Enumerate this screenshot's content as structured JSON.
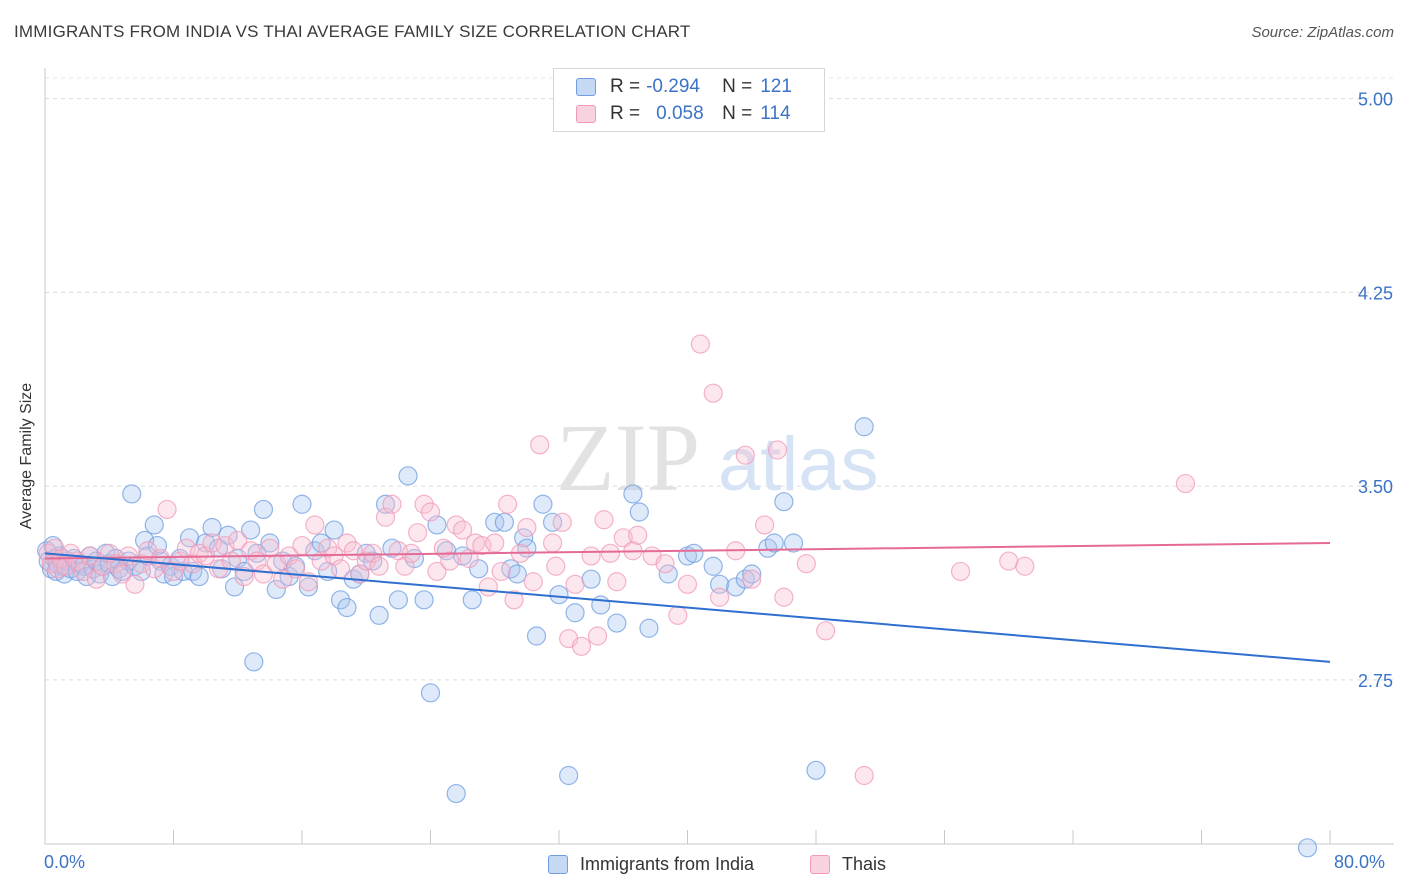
{
  "title": "IMMIGRANTS FROM INDIA VS THAI AVERAGE FAMILY SIZE CORRELATION CHART",
  "source": "Source: ZipAtlas.com",
  "watermark": {
    "zip": "ZIP",
    "atlas": "atlas"
  },
  "legend": {
    "rows": [
      {
        "r_label": "R =",
        "r_value": "-0.294",
        "n_label": "N =",
        "n_value": "121",
        "color": "#6f9ee0"
      },
      {
        "r_label": "R =",
        "r_value": "0.058",
        "n_label": "N =",
        "n_value": "114",
        "color": "#f09ab8"
      }
    ]
  },
  "bottom_legend": [
    {
      "label": "Immigrants from India",
      "color": "#6f9ee0"
    },
    {
      "label": "Thais",
      "color": "#f09ab8"
    }
  ],
  "chart_data": {
    "type": "scatter",
    "title": "IMMIGRANTS FROM INDIA VS THAI AVERAGE FAMILY SIZE CORRELATION CHART",
    "xlabel": "",
    "ylabel": "Average Family Size",
    "xlim": [
      0,
      80
    ],
    "ylim": [
      2.2,
      5.08
    ],
    "x_tick_labels": [
      "0.0%",
      "80.0%"
    ],
    "y_ticks": [
      2.75,
      3.5,
      4.25,
      5.0
    ],
    "y_tick_labels": [
      "2.75",
      "3.50",
      "4.25",
      "5.00"
    ],
    "grid": true,
    "legend_position": "top-center",
    "series": [
      {
        "name": "Immigrants from India",
        "color": "#6f9ee0",
        "trend": {
          "x": [
            0,
            80
          ],
          "y": [
            3.24,
            2.82
          ]
        },
        "points": [
          [
            0.1,
            3.25
          ],
          [
            0.2,
            3.21
          ],
          [
            0.4,
            3.18
          ],
          [
            0.5,
            3.27
          ],
          [
            0.6,
            3.22
          ],
          [
            0.7,
            3.17
          ],
          [
            0.8,
            3.2
          ],
          [
            0.9,
            3.23
          ],
          [
            1.1,
            3.19
          ],
          [
            1.2,
            3.16
          ],
          [
            1.4,
            3.21
          ],
          [
            1.6,
            3.18
          ],
          [
            1.8,
            3.22
          ],
          [
            2.0,
            3.17
          ],
          [
            2.2,
            3.2
          ],
          [
            2.4,
            3.19
          ],
          [
            2.6,
            3.15
          ],
          [
            2.8,
            3.23
          ],
          [
            3.0,
            3.18
          ],
          [
            3.2,
            3.21
          ],
          [
            3.4,
            3.16
          ],
          [
            3.6,
            3.19
          ],
          [
            3.8,
            3.24
          ],
          [
            4.0,
            3.2
          ],
          [
            4.2,
            3.15
          ],
          [
            4.4,
            3.22
          ],
          [
            4.6,
            3.18
          ],
          [
            4.8,
            3.17
          ],
          [
            5.2,
            3.21
          ],
          [
            5.4,
            3.47
          ],
          [
            5.6,
            3.19
          ],
          [
            6.0,
            3.17
          ],
          [
            6.2,
            3.29
          ],
          [
            6.4,
            3.23
          ],
          [
            6.8,
            3.35
          ],
          [
            7.0,
            3.27
          ],
          [
            7.2,
            3.21
          ],
          [
            7.4,
            3.16
          ],
          [
            7.8,
            3.19
          ],
          [
            8.0,
            3.15
          ],
          [
            8.4,
            3.22
          ],
          [
            8.6,
            3.17
          ],
          [
            9.0,
            3.3
          ],
          [
            9.2,
            3.17
          ],
          [
            9.6,
            3.15
          ],
          [
            10.0,
            3.28
          ],
          [
            10.4,
            3.34
          ],
          [
            10.8,
            3.26
          ],
          [
            11.0,
            3.18
          ],
          [
            11.4,
            3.31
          ],
          [
            11.8,
            3.11
          ],
          [
            12.0,
            3.22
          ],
          [
            12.4,
            3.17
          ],
          [
            12.8,
            3.33
          ],
          [
            13.0,
            2.82
          ],
          [
            13.2,
            3.24
          ],
          [
            13.6,
            3.41
          ],
          [
            14.0,
            3.28
          ],
          [
            14.4,
            3.1
          ],
          [
            14.8,
            3.21
          ],
          [
            15.2,
            3.15
          ],
          [
            15.6,
            3.19
          ],
          [
            16.0,
            3.43
          ],
          [
            16.4,
            3.11
          ],
          [
            16.8,
            3.25
          ],
          [
            17.2,
            3.28
          ],
          [
            17.6,
            3.17
          ],
          [
            18.0,
            3.33
          ],
          [
            18.4,
            3.06
          ],
          [
            18.8,
            3.03
          ],
          [
            19.2,
            3.14
          ],
          [
            19.6,
            3.16
          ],
          [
            20.0,
            3.24
          ],
          [
            20.4,
            3.21
          ],
          [
            20.8,
            3.0
          ],
          [
            21.2,
            3.43
          ],
          [
            21.6,
            3.26
          ],
          [
            22.0,
            3.06
          ],
          [
            22.6,
            3.54
          ],
          [
            23.0,
            3.22
          ],
          [
            23.6,
            3.06
          ],
          [
            24.0,
            2.7
          ],
          [
            24.4,
            3.35
          ],
          [
            25.0,
            3.25
          ],
          [
            25.6,
            2.31
          ],
          [
            26.0,
            3.23
          ],
          [
            26.6,
            3.06
          ],
          [
            27.0,
            3.18
          ],
          [
            28.0,
            3.36
          ],
          [
            28.6,
            3.36
          ],
          [
            29.0,
            3.18
          ],
          [
            29.4,
            3.16
          ],
          [
            29.8,
            3.3
          ],
          [
            30.0,
            3.26
          ],
          [
            30.6,
            2.92
          ],
          [
            31.0,
            3.43
          ],
          [
            31.6,
            3.36
          ],
          [
            32.0,
            3.08
          ],
          [
            32.6,
            2.38
          ],
          [
            33.0,
            3.01
          ],
          [
            34.0,
            3.14
          ],
          [
            34.6,
            3.04
          ],
          [
            35.6,
            2.97
          ],
          [
            36.6,
            3.47
          ],
          [
            37.0,
            3.4
          ],
          [
            37.6,
            2.95
          ],
          [
            38.8,
            3.16
          ],
          [
            40.0,
            3.23
          ],
          [
            40.4,
            3.24
          ],
          [
            41.6,
            3.19
          ],
          [
            42.0,
            3.12
          ],
          [
            43.0,
            3.11
          ],
          [
            43.6,
            3.14
          ],
          [
            44.0,
            3.16
          ],
          [
            45.0,
            3.26
          ],
          [
            45.4,
            3.28
          ],
          [
            46.0,
            3.44
          ],
          [
            46.6,
            3.28
          ],
          [
            48.0,
            2.4
          ],
          [
            51.0,
            3.73
          ],
          [
            78.6,
            2.1
          ]
        ]
      },
      {
        "name": "Thais",
        "color": "#f09ab8",
        "trend": {
          "x": [
            0,
            80
          ],
          "y": [
            3.22,
            3.28
          ]
        },
        "points": [
          [
            0.2,
            3.24
          ],
          [
            0.4,
            3.2
          ],
          [
            0.6,
            3.26
          ],
          [
            0.8,
            3.18
          ],
          [
            1.0,
            3.22
          ],
          [
            1.3,
            3.19
          ],
          [
            1.6,
            3.24
          ],
          [
            2.0,
            3.21
          ],
          [
            2.4,
            3.17
          ],
          [
            2.8,
            3.23
          ],
          [
            3.2,
            3.14
          ],
          [
            3.6,
            3.19
          ],
          [
            4.0,
            3.24
          ],
          [
            4.4,
            3.2
          ],
          [
            4.8,
            3.16
          ],
          [
            5.2,
            3.23
          ],
          [
            5.6,
            3.12
          ],
          [
            6.0,
            3.2
          ],
          [
            6.4,
            3.25
          ],
          [
            6.8,
            3.18
          ],
          [
            7.2,
            3.22
          ],
          [
            7.6,
            3.41
          ],
          [
            8.0,
            3.17
          ],
          [
            8.4,
            3.21
          ],
          [
            8.8,
            3.26
          ],
          [
            9.2,
            3.2
          ],
          [
            9.6,
            3.24
          ],
          [
            10.0,
            3.23
          ],
          [
            10.4,
            3.28
          ],
          [
            10.8,
            3.18
          ],
          [
            11.2,
            3.27
          ],
          [
            11.6,
            3.21
          ],
          [
            12.0,
            3.29
          ],
          [
            12.4,
            3.15
          ],
          [
            12.8,
            3.25
          ],
          [
            13.2,
            3.21
          ],
          [
            13.6,
            3.16
          ],
          [
            14.0,
            3.26
          ],
          [
            14.4,
            3.2
          ],
          [
            14.8,
            3.14
          ],
          [
            15.2,
            3.23
          ],
          [
            15.6,
            3.18
          ],
          [
            16.0,
            3.27
          ],
          [
            16.4,
            3.13
          ],
          [
            16.8,
            3.35
          ],
          [
            17.2,
            3.21
          ],
          [
            17.6,
            3.26
          ],
          [
            18.0,
            3.23
          ],
          [
            18.4,
            3.18
          ],
          [
            18.8,
            3.28
          ],
          [
            19.2,
            3.25
          ],
          [
            19.6,
            3.16
          ],
          [
            20.0,
            3.21
          ],
          [
            20.4,
            3.24
          ],
          [
            20.8,
            3.19
          ],
          [
            21.2,
            3.38
          ],
          [
            21.6,
            3.43
          ],
          [
            22.0,
            3.25
          ],
          [
            22.4,
            3.19
          ],
          [
            22.8,
            3.24
          ],
          [
            23.2,
            3.32
          ],
          [
            23.6,
            3.43
          ],
          [
            24.0,
            3.4
          ],
          [
            24.4,
            3.17
          ],
          [
            24.8,
            3.26
          ],
          [
            25.2,
            3.21
          ],
          [
            25.6,
            3.35
          ],
          [
            26.0,
            3.33
          ],
          [
            26.4,
            3.22
          ],
          [
            26.8,
            3.28
          ],
          [
            27.2,
            3.27
          ],
          [
            27.6,
            3.11
          ],
          [
            28.0,
            3.28
          ],
          [
            28.4,
            3.17
          ],
          [
            28.8,
            3.43
          ],
          [
            29.2,
            3.06
          ],
          [
            29.6,
            3.24
          ],
          [
            30.0,
            3.34
          ],
          [
            30.4,
            3.13
          ],
          [
            30.8,
            3.66
          ],
          [
            31.6,
            3.28
          ],
          [
            31.8,
            3.19
          ],
          [
            32.2,
            3.36
          ],
          [
            32.6,
            2.91
          ],
          [
            33.0,
            3.12
          ],
          [
            33.4,
            2.88
          ],
          [
            34.0,
            3.23
          ],
          [
            34.4,
            2.92
          ],
          [
            34.8,
            3.37
          ],
          [
            35.2,
            3.24
          ],
          [
            35.6,
            3.13
          ],
          [
            36.0,
            3.3
          ],
          [
            36.6,
            3.25
          ],
          [
            36.9,
            3.31
          ],
          [
            37.8,
            3.23
          ],
          [
            38.6,
            3.2
          ],
          [
            39.4,
            3.0
          ],
          [
            40.0,
            3.12
          ],
          [
            40.8,
            4.05
          ],
          [
            41.6,
            3.86
          ],
          [
            42.0,
            3.07
          ],
          [
            43.0,
            3.25
          ],
          [
            43.6,
            3.62
          ],
          [
            44.0,
            3.14
          ],
          [
            44.8,
            3.35
          ],
          [
            45.6,
            3.64
          ],
          [
            46.0,
            3.07
          ],
          [
            47.4,
            3.2
          ],
          [
            48.6,
            2.94
          ],
          [
            51.0,
            2.38
          ],
          [
            57.0,
            3.17
          ],
          [
            60.0,
            3.21
          ],
          [
            61.0,
            3.19
          ],
          [
            71.0,
            3.51
          ]
        ]
      }
    ]
  }
}
